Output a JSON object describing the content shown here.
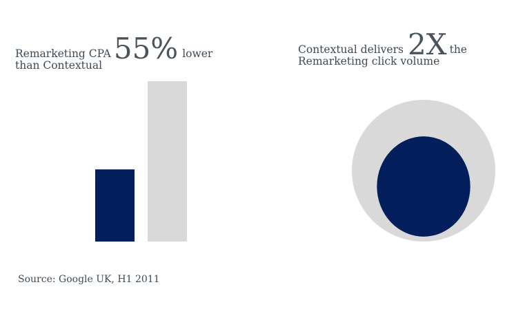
{
  "left_panel": {
    "prefix": "Remarketing CPA",
    "highlight": "55%",
    "suffix": "lower",
    "line2": "than Contextual"
  },
  "right_panel": {
    "prefix": "Contextual delivers",
    "highlight": "2X",
    "suffix": "the",
    "line2": "Remarketing click volume"
  },
  "source": "Source: Google UK, H1 2011",
  "colors": {
    "remarketing": "#021f5b",
    "contextual": "#d9d9d9",
    "text": "#3f4a54"
  },
  "chart_data": [
    {
      "type": "bar",
      "categories": [
        "",
        ""
      ],
      "values": [
        45,
        100
      ],
      "ylim": [
        0,
        100
      ],
      "grid": false
    },
    {
      "type": "bubble",
      "values": [
        1,
        2
      ],
      "grid": false
    }
  ]
}
